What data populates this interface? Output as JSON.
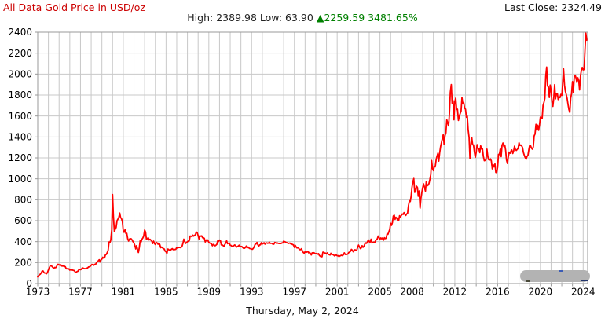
{
  "header": {
    "title": "All Data Gold Price in USD/oz",
    "high_label": "High:",
    "high_value": "2389.98",
    "low_label": "Low:",
    "low_value": "63.90",
    "change_arrow": "▲",
    "change_value": "2259.59",
    "change_percent": "3481.65%",
    "last_close_label": "Last Close:",
    "last_close_value": "2324.49"
  },
  "footer": {
    "date": "Thursday, May 2, 2024"
  },
  "colors": {
    "line": "#ff0000",
    "title": "#cc0000",
    "gain": "#008000",
    "grid": "#c8c8c8",
    "frame": "#9a9a9a",
    "blob": "#b3b3b3"
  },
  "chart_data": {
    "type": "line",
    "title": "All Data Gold Price in USD/oz",
    "ylabel": "",
    "xlabel": "",
    "grid": true,
    "legend": "none",
    "ylim": [
      0,
      2400
    ],
    "xlim": [
      1973,
      2024.42
    ],
    "y_ticks": [
      0,
      200,
      400,
      600,
      800,
      1000,
      1200,
      1400,
      1600,
      1800,
      2000,
      2200,
      2400
    ],
    "x_ticks": [
      1973,
      1977,
      1981,
      1985,
      1989,
      1993,
      1997,
      2001,
      2005,
      2008,
      2012,
      2016,
      2020,
      2024
    ],
    "x_start_year": 1973,
    "points_per_year": 12,
    "annotations": {
      "high": 2389.98,
      "low": 63.9,
      "change": 2259.59,
      "change_pct": "3481.65%",
      "last_close": 2324.49
    },
    "series": [
      {
        "name": "Gold Price USD/oz",
        "values": [
          63.9,
          74,
          84,
          90,
          102,
          120,
          120,
          106,
          100,
          100,
          94,
          107,
          129,
          150,
          168,
          172,
          163,
          154,
          143,
          154,
          151,
          158,
          181,
          184,
          176,
          180,
          178,
          167,
          167,
          166,
          166,
          160,
          141,
          142,
          138,
          140,
          128,
          132,
          130,
          128,
          126,
          124,
          112,
          104,
          114,
          117,
          130,
          134,
          132,
          136,
          149,
          147,
          143,
          141,
          144,
          146,
          149,
          158,
          160,
          165,
          175,
          182,
          181,
          175,
          184,
          183,
          200,
          208,
          217,
          227,
          206,
          226,
          233,
          251,
          242,
          245,
          274,
          279,
          296,
          315,
          397,
          391,
          415,
          512,
          850,
          637,
          494,
          518,
          535,
          600,
          614,
          631,
          673,
          629,
          620,
          590,
          506,
          489,
          514,
          477,
          479,
          426,
          406,
          425,
          428,
          427,
          414,
          398,
          387,
          362,
          330,
          361,
          325,
          296,
          342,
          411,
          397,
          423,
          436,
          457,
          511,
          491,
          420,
          429,
          437,
          416,
          422,
          414,
          405,
          382,
          405,
          382,
          373,
          394,
          388,
          375,
          387,
          373,
          342,
          348,
          341,
          333,
          329,
          309,
          302,
          287,
          329,
          325,
          316,
          317,
          327,
          333,
          324,
          325,
          325,
          327,
          345,
          338,
          344,
          345,
          343,
          346,
          357,
          385,
          423,
          401,
          383,
          391,
          400,
          405,
          408,
          453,
          453,
          447,
          462,
          453,
          459,
          468,
          492,
          484,
          458,
          426,
          457,
          451,
          455,
          437,
          437,
          431,
          397,
          412,
          420,
          410,
          394,
          387,
          383,
          378,
          361,
          373,
          368,
          360,
          366,
          374,
          409,
          401,
          415,
          408,
          368,
          368,
          363,
          352,
          372,
          388,
          408,
          380,
          384,
          386,
          366,
          363,
          355,
          357,
          361,
          368,
          362,
          347,
          354,
          357,
          366,
          353,
          354,
          353,
          344,
          336,
          337,
          343,
          358,
          340,
          349,
          339,
          334,
          333,
          329,
          327,
          337,
          354,
          375,
          378,
          392,
          371,
          355,
          369,
          370,
          390,
          377,
          381,
          389,
          376,
          387,
          388,
          384,
          386,
          394,
          383,
          383,
          383,
          374,
          376,
          392,
          389,
          384,
          387,
          383,
          382,
          383,
          382,
          387,
          387,
          405,
          400,
          396,
          391,
          390,
          382,
          385,
          386,
          379,
          378,
          371,
          369,
          345,
          364,
          348,
          339,
          345,
          334,
          324,
          324,
          332,
          311,
          296,
          290,
          304,
          297,
          301,
          308,
          293,
          296,
          288,
          273,
          293,
          292,
          294,
          287,
          285,
          287,
          280,
          286,
          268,
          261,
          255,
          256,
          299,
          299,
          291,
          290,
          283,
          293,
          278,
          275,
          272,
          289,
          276,
          277,
          273,
          264,
          269,
          272,
          265,
          266,
          257,
          263,
          267,
          270,
          266,
          274,
          293,
          278,
          275,
          279,
          282,
          296,
          301,
          308,
          326,
          318,
          304,
          312,
          323,
          316,
          319,
          347,
          367,
          350,
          334,
          339,
          361,
          346,
          354,
          375,
          388,
          384,
          398,
          416,
          399,
          395,
          423,
          387,
          393,
          395,
          391,
          407,
          420,
          425,
          453,
          438,
          422,
          435,
          427,
          435,
          414,
          437,
          429,
          433,
          473,
          470,
          495,
          517,
          575,
          556,
          582,
          644,
          653,
          613,
          632,
          623,
          599,
          603,
          647,
          636,
          650,
          664,
          661,
          677,
          659,
          650,
          665,
          672,
          743,
          789,
          783,
          833,
          923,
          971,
          1003,
          871,
          885,
          930,
          918,
          833,
          884,
          720,
          814,
          870,
          919,
          952,
          916,
          883,
          975,
          934,
          939,
          955,
          995,
          1040,
          1175,
          1096,
          1078,
          1118,
          1115,
          1179,
          1215,
          1244,
          1169,
          1246,
          1307,
          1346,
          1383,
          1421,
          1327,
          1411,
          1439,
          1563,
          1536,
          1505,
          1628,
          1826,
          1900,
          1722,
          1746,
          1564,
          1737,
          1770,
          1662,
          1664,
          1558,
          1598,
          1622,
          1648,
          1776,
          1719,
          1726,
          1675,
          1664,
          1588,
          1598,
          1469,
          1394,
          1192,
          1323,
          1394,
          1326,
          1324,
          1253,
          1205,
          1251,
          1326,
          1291,
          1288,
          1250,
          1315,
          1285,
          1287,
          1216,
          1173,
          1175,
          1184,
          1283,
          1214,
          1183,
          1180,
          1190,
          1171,
          1095,
          1135,
          1114,
          1142,
          1061,
          1060,
          1111,
          1234,
          1232,
          1285,
          1212,
          1320,
          1342,
          1309,
          1322,
          1272,
          1178,
          1147,
          1210,
          1255,
          1244,
          1266,
          1275,
          1242,
          1267,
          1311,
          1280,
          1271,
          1280,
          1291,
          1345,
          1318,
          1323,
          1315,
          1298,
          1250,
          1224,
          1202,
          1187,
          1215,
          1222,
          1279,
          1321,
          1316,
          1292,
          1283,
          1305,
          1409,
          1428,
          1520,
          1466,
          1512,
          1463,
          1517,
          1589,
          1586,
          1577,
          1702,
          1730,
          1768,
          1976,
          2067,
          1886,
          1878,
          1777,
          1895,
          1848,
          1734,
          1691,
          1768,
          1899,
          1763,
          1814,
          1814,
          1757,
          1783,
          1775,
          1806,
          1797,
          1909,
          2050,
          1897,
          1837,
          1807,
          1766,
          1711,
          1661,
          1634,
          1769,
          1814,
          1928,
          1825,
          1969,
          1990,
          1962,
          1919,
          1965,
          1940,
          1849,
          1984,
          2036,
          2063,
          2040,
          2044,
          2230,
          2389.98,
          2324.49
        ]
      }
    ]
  }
}
